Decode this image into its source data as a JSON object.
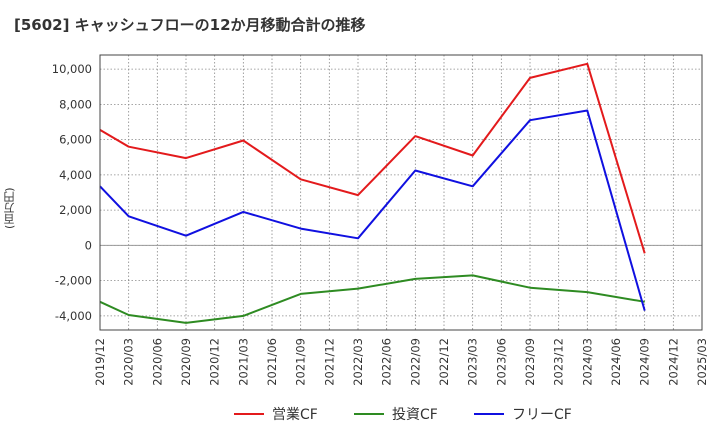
{
  "chart_data": {
    "type": "line",
    "title": "[5602]  キャッシュフローの12か月移動合計の推移",
    "ylabel": "(百万円)",
    "xlabel": "",
    "ylim": [
      -4800,
      10800
    ],
    "yticks": [
      -4000,
      -2000,
      0,
      2000,
      4000,
      6000,
      8000,
      10000
    ],
    "ytick_labels": [
      "-4,000",
      "-2,000",
      "0",
      "2,000",
      "4,000",
      "6,000",
      "8,000",
      "10,000"
    ],
    "xticks": [
      "2019/12",
      "2020/03",
      "2020/06",
      "2020/09",
      "2020/12",
      "2021/03",
      "2021/06",
      "2021/09",
      "2021/12",
      "2022/03",
      "2022/06",
      "2022/09",
      "2022/12",
      "2023/03",
      "2023/06",
      "2023/09",
      "2023/12",
      "2024/03",
      "2024/06",
      "2024/09",
      "2024/12",
      "2025/03"
    ],
    "grid": true,
    "legend_position": "bottom",
    "series": [
      {
        "name": "営業CF",
        "color": "#e31a1c",
        "x": [
          "2019/12",
          "2020/03",
          "2020/09",
          "2021/03",
          "2021/09",
          "2022/03",
          "2022/09",
          "2023/03",
          "2023/09",
          "2024/03",
          "2024/09"
        ],
        "values": [
          6550,
          5600,
          4950,
          5950,
          3750,
          2850,
          6200,
          5100,
          9500,
          10300,
          -450
        ]
      },
      {
        "name": "投資CF",
        "color": "#2e8b22",
        "x": [
          "2019/12",
          "2020/03",
          "2020/09",
          "2021/03",
          "2021/09",
          "2022/03",
          "2022/09",
          "2023/03",
          "2023/09",
          "2024/03",
          "2024/09"
        ],
        "values": [
          -3200,
          -3950,
          -4400,
          -4000,
          -2750,
          -2450,
          -1900,
          -1700,
          -2400,
          -2650,
          -3200
        ]
      },
      {
        "name": "フリーCF",
        "color": "#1010e0",
        "x": [
          "2019/12",
          "2020/03",
          "2020/09",
          "2021/03",
          "2021/09",
          "2022/03",
          "2022/09",
          "2023/03",
          "2023/09",
          "2024/03",
          "2024/09"
        ],
        "values": [
          3350,
          1650,
          550,
          1900,
          950,
          400,
          4250,
          3350,
          7100,
          7650,
          -3700
        ]
      }
    ]
  }
}
